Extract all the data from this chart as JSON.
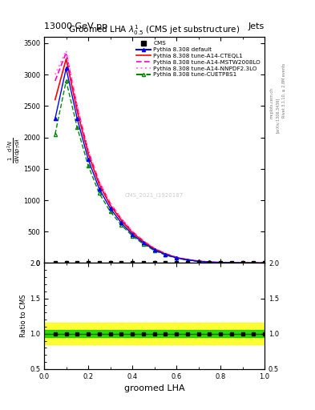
{
  "title": "13000 GeV pp",
  "title_right": "Jets",
  "plot_title": "Groomed LHA $\\lambda^{1}_{0.5}$ (CMS jet substructure)",
  "xlabel": "groomed LHA",
  "watermark": "CMS_2021_I1920187",
  "rivet_text": "Rivet 3.1.10, ≥ 2.8M events",
  "arxiv_text": "[arXiv:1306.3436]",
  "mcplots_text": "mcplots.cern.ch",
  "x_data": [
    0.05,
    0.1,
    0.15,
    0.2,
    0.25,
    0.3,
    0.35,
    0.4,
    0.45,
    0.5,
    0.55,
    0.6,
    0.65,
    0.7,
    0.75,
    0.8,
    0.85,
    0.9,
    0.95,
    1.0
  ],
  "pythia_default": [
    2300,
    3100,
    2300,
    1650,
    1180,
    870,
    640,
    455,
    320,
    210,
    135,
    82,
    50,
    27,
    13,
    7,
    3.5,
    1.7,
    0.8,
    0.4
  ],
  "pythia_cteql1": [
    2600,
    3250,
    2420,
    1740,
    1250,
    920,
    680,
    485,
    340,
    224,
    145,
    87,
    53,
    29,
    15,
    8,
    4,
    2,
    0.9,
    0.4
  ],
  "pythia_mstw": [
    2900,
    3350,
    2490,
    1790,
    1290,
    950,
    705,
    503,
    353,
    232,
    150,
    90,
    55,
    30,
    16,
    8.5,
    4.2,
    2.1,
    1.0,
    0.45
  ],
  "pythia_nnpdf": [
    3000,
    3380,
    2510,
    1800,
    1300,
    960,
    712,
    508,
    356,
    234,
    152,
    91,
    56,
    31,
    16,
    8.6,
    4.3,
    2.1,
    1.0,
    0.45
  ],
  "pythia_cuetp8s1": [
    2050,
    2900,
    2160,
    1550,
    1110,
    820,
    605,
    432,
    302,
    198,
    128,
    77,
    47,
    26,
    13,
    6.8,
    3.4,
    1.6,
    0.78,
    0.38
  ],
  "colors": {
    "cms": "#000000",
    "pythia_default": "#0000ff",
    "pythia_cteql1": "#ff0000",
    "pythia_mstw": "#ff00cc",
    "pythia_nnpdf": "#ff88ee",
    "pythia_cuetp8s1": "#008800"
  },
  "ratio_cms_band_green": [
    0.95,
    1.05
  ],
  "ratio_cms_band_yellow": [
    0.85,
    1.15
  ],
  "ylim_main": [
    0,
    3600
  ],
  "ylim_ratio": [
    0.5,
    2.0
  ],
  "xlim": [
    0.0,
    1.0
  ],
  "yticks_main": [
    0,
    500,
    1000,
    1500,
    2000,
    2500,
    3000,
    3500
  ],
  "ytick_labels_main": [
    "0",
    "500",
    "1000",
    "1500",
    "2000",
    "2500",
    "3000",
    "3500"
  ]
}
